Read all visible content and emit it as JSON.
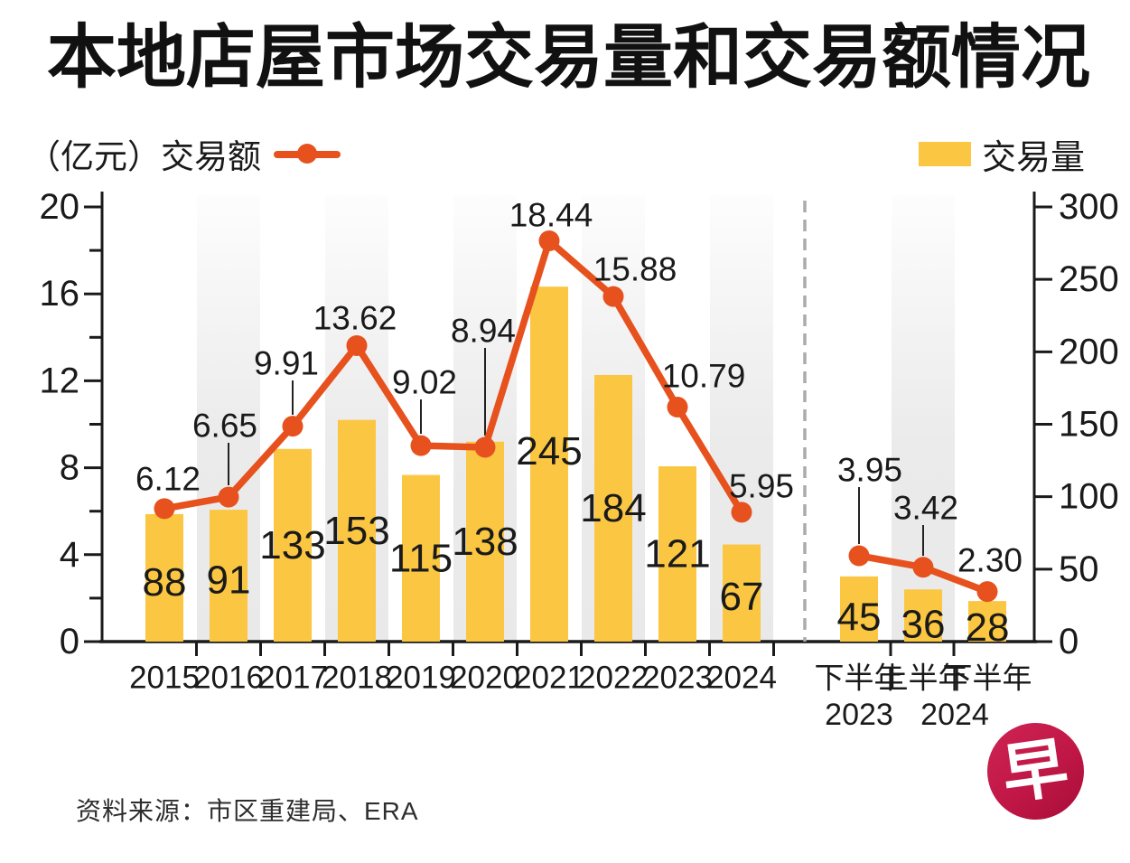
{
  "title": "本地店屋市场交易量和交易额情况",
  "legend": {
    "left_unit": "（亿元）",
    "left_series": "交易额",
    "right_series": "交易量"
  },
  "source": "资料来源：市区重建局、ERA",
  "logo_text": "早",
  "colors": {
    "bar": "#FBC642",
    "line": "#E6511E",
    "band_gray": "#E9E9E9",
    "divider": "#ABABAB",
    "axis": "#1a1a1a",
    "logo_red": "#C01746"
  },
  "chart_data": {
    "type": "bar+line combo",
    "left_axis": {
      "unit": "亿元",
      "series": "交易额",
      "min": 0,
      "max": 20,
      "major_ticks": [
        20,
        16,
        12,
        8,
        4,
        0
      ],
      "minor_ticks": [
        18,
        14,
        10,
        6,
        2
      ]
    },
    "right_axis": {
      "series": "交易量",
      "min": 0,
      "max": 300,
      "ticks": [
        300,
        250,
        200,
        150,
        100,
        50,
        0
      ]
    },
    "categories": [
      {
        "label": "2015",
        "volume": 88,
        "value": 6.12,
        "value_label": "6.12",
        "shaded": false,
        "group": 1
      },
      {
        "label": "2016",
        "volume": 91,
        "value": 6.65,
        "value_label": "6.65",
        "shaded": true,
        "group": 1
      },
      {
        "label": "2017",
        "volume": 133,
        "value": 9.91,
        "value_label": "9.91",
        "shaded": false,
        "group": 1
      },
      {
        "label": "2018",
        "volume": 153,
        "value": 13.62,
        "value_label": "13.62",
        "shaded": true,
        "group": 1
      },
      {
        "label": "2019",
        "volume": 115,
        "value": 9.02,
        "value_label": "9.02",
        "shaded": false,
        "group": 1
      },
      {
        "label": "2020",
        "volume": 138,
        "value": 8.94,
        "value_label": "8.94",
        "shaded": true,
        "group": 1
      },
      {
        "label": "2021",
        "volume": 245,
        "value": 18.44,
        "value_label": "18.44",
        "shaded": false,
        "group": 1
      },
      {
        "label": "2022",
        "volume": 184,
        "value": 15.88,
        "value_label": "15.88",
        "shaded": true,
        "group": 1
      },
      {
        "label": "2023",
        "volume": 121,
        "value": 10.79,
        "value_label": "10.79",
        "shaded": false,
        "group": 1
      },
      {
        "label": "2024",
        "volume": 67,
        "value": 5.95,
        "value_label": "5.95",
        "shaded": true,
        "group": 1
      },
      {
        "label": "下半年",
        "sublabel": "2023",
        "volume": 45,
        "value": 3.95,
        "value_label": "3.95",
        "shaded": false,
        "group": 2
      },
      {
        "label": "上半年",
        "sublabel": "2024",
        "volume": 36,
        "value": 3.42,
        "value_label": "3.42",
        "shaded": true,
        "group": 2
      },
      {
        "label": "下半年",
        "volume": 28,
        "value": 2.3,
        "value_label": "2.30",
        "shaded": false,
        "group": 2
      }
    ],
    "series": [
      {
        "name": "交易量",
        "type": "bar",
        "axis": "right",
        "values": [
          88,
          91,
          133,
          153,
          115,
          138,
          245,
          184,
          121,
          67,
          45,
          36,
          28
        ]
      },
      {
        "name": "交易额",
        "type": "line",
        "axis": "left",
        "values": [
          6.12,
          6.65,
          9.91,
          13.62,
          9.02,
          8.94,
          18.44,
          15.88,
          10.79,
          5.95,
          3.95,
          3.42,
          2.3
        ]
      }
    ],
    "sublabel_row": [
      {
        "text": "2023",
        "anchor_col": 10,
        "offset": 0
      },
      {
        "text": "2024",
        "anchor_col": 11,
        "offset": 35
      }
    ],
    "layout_hints": {
      "divider_between_groups": true,
      "shaded_column_stripes": true,
      "legend_position": "top"
    }
  }
}
